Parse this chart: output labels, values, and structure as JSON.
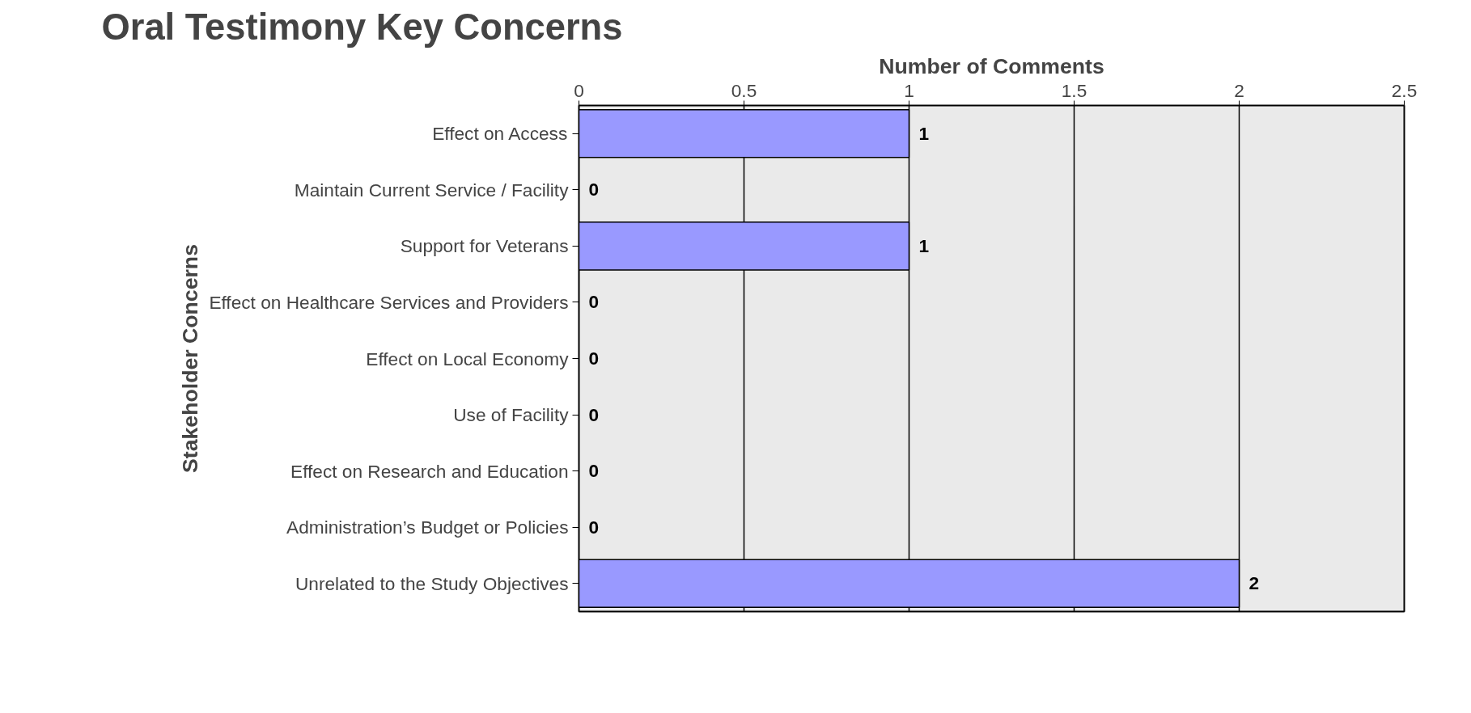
{
  "chart_data": {
    "type": "bar",
    "orientation": "horizontal",
    "title": "Oral Testimony Key Concerns",
    "xlabel": "Number of Comments",
    "ylabel": "Stakeholder Concerns",
    "categories": [
      "Effect on Access",
      "Maintain Current Service / Facility",
      "Support for Veterans",
      "Effect on Healthcare Services and Providers",
      "Effect on Local Economy",
      "Use of Facility",
      "Effect on Research and Education",
      "Administration’s Budget or Policies",
      "Unrelated to the Study Objectives"
    ],
    "values": [
      1,
      0,
      1,
      0,
      0,
      0,
      0,
      0,
      2
    ],
    "color": "#9999ff",
    "xlim": [
      0,
      2.5
    ],
    "xticks": [
      0,
      0.5,
      1,
      1.5,
      2,
      2.5
    ],
    "grid": "x",
    "data_labels": true
  }
}
